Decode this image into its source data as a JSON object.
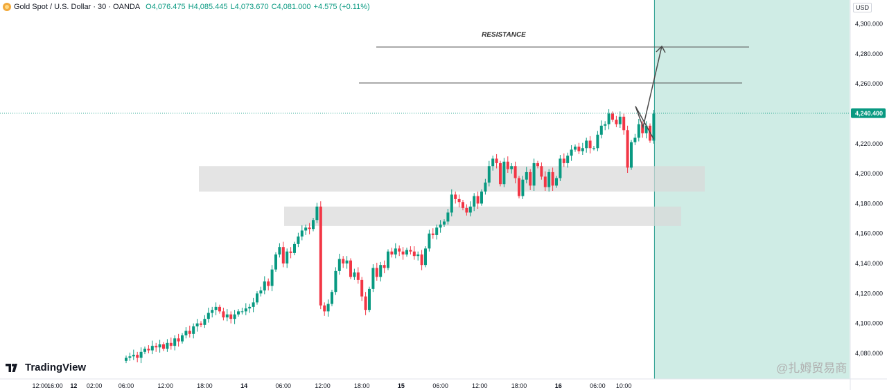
{
  "header": {
    "symbol": "Gold Spot / U.S. Dollar · 30 · OANDA",
    "o": "O4,076.475",
    "h": "H4,085.445",
    "l": "L4,073.670",
    "c": "C4,081.000",
    "chg": "+4.575 (+0.11%)"
  },
  "currency": "USD",
  "brand": "TradingView",
  "watermark": "@扎姆贸易商",
  "colors": {
    "up": "#089981",
    "down": "#f23645",
    "zone": "#d9d9d9",
    "forecast": "#cfece5",
    "line": "#555555"
  },
  "chart_data": {
    "type": "candlestick",
    "title": "Gold Spot / U.S. Dollar · 30 · OANDA",
    "ylim": [
      4070,
      4310
    ],
    "y_ticks": [
      "4,080.000",
      "4,100.000",
      "4,120.000",
      "4,140.000",
      "4,160.000",
      "4,180.000",
      "4,200.000",
      "4,220.000",
      "4,240.000",
      "4,260.000",
      "4,280.000",
      "4,300.000"
    ],
    "y_tick_values": [
      4080,
      4100,
      4120,
      4140,
      4160,
      4180,
      4200,
      4220,
      4240,
      4260,
      4280,
      4300
    ],
    "current_price": 4240.4,
    "current_price_label": "4,240.400",
    "x_ticks": [
      {
        "label": "12:00",
        "i": -23,
        "bold": false
      },
      {
        "label": "16:00",
        "i": -19,
        "bold": false
      },
      {
        "label": "12",
        "i": -14,
        "bold": true
      },
      {
        "label": "02:00",
        "i": -8.5,
        "bold": false
      },
      {
        "label": "06:00",
        "i": 0,
        "bold": false
      },
      {
        "label": "12:00",
        "i": 10.5,
        "bold": false
      },
      {
        "label": "18:00",
        "i": 21,
        "bold": false
      },
      {
        "label": "14",
        "i": 31.5,
        "bold": true
      },
      {
        "label": "06:00",
        "i": 42,
        "bold": false
      },
      {
        "label": "12:00",
        "i": 52.5,
        "bold": false
      },
      {
        "label": "18:00",
        "i": 63,
        "bold": false
      },
      {
        "label": "15",
        "i": 73.5,
        "bold": true
      },
      {
        "label": "06:00",
        "i": 84,
        "bold": false
      },
      {
        "label": "12:00",
        "i": 94.5,
        "bold": false
      },
      {
        "label": "18:00",
        "i": 105,
        "bold": false
      },
      {
        "label": "16",
        "i": 115.5,
        "bold": true
      },
      {
        "label": "06:00",
        "i": 126,
        "bold": false
      },
      {
        "label": "10:00",
        "i": 133,
        "bold": false
      }
    ],
    "candle_closes": [
      4077,
      4078,
      4079,
      4077,
      4081,
      4083,
      4082,
      4085,
      4084,
      4086,
      4083,
      4087,
      4085,
      4090,
      4088,
      4092,
      4095,
      4093,
      4098,
      4100,
      4099,
      4103,
      4107,
      4109,
      4111,
      4108,
      4104,
      4106,
      4103,
      4106,
      4108,
      4108,
      4110,
      4111,
      4114,
      4120,
      4122,
      4128,
      4125,
      4136,
      4146,
      4151,
      4140,
      4148,
      4147,
      4153,
      4158,
      4162,
      4164,
      4163,
      4169,
      4178,
      4112,
      4108,
      4113,
      4121,
      4135,
      4143,
      4140,
      4142,
      4131,
      4134,
      4129,
      4118,
      4109,
      4123,
      4137,
      4131,
      4139,
      4137,
      4148,
      4146,
      4150,
      4148,
      4146,
      4149,
      4148,
      4145,
      4146,
      4139,
      4150,
      4160,
      4159,
      4164,
      4166,
      4168,
      4174,
      4186,
      4183,
      4181,
      4177,
      4174,
      4178,
      4185,
      4180,
      4188,
      4194,
      4205,
      4210,
      4207,
      4193,
      4208,
      4203,
      4205,
      4197,
      4185,
      4196,
      4201,
      4192,
      4207,
      4205,
      4198,
      4191,
      4201,
      4192,
      4197,
      4210,
      4207,
      4212,
      4216,
      4218,
      4215,
      4217,
      4222,
      4217,
      4217,
      4226,
      4232,
      4233,
      4240,
      4236,
      4233,
      4238,
      4229,
      4204,
      4221,
      4224,
      4233,
      4227,
      4232,
      4222,
      4240
    ],
    "forecast_path": [
      [
        4223,
        "start"
      ],
      [
        4245,
        ""
      ],
      [
        4231,
        ""
      ],
      [
        4285,
        "arrow"
      ]
    ],
    "resistance_label": "RESISTANCE",
    "resistance_levels": [
      4284.5,
      4260.5
    ],
    "demand_zones": [
      {
        "from": 4188,
        "to": 4205
      },
      {
        "from": 4165,
        "to": 4178
      }
    ]
  }
}
